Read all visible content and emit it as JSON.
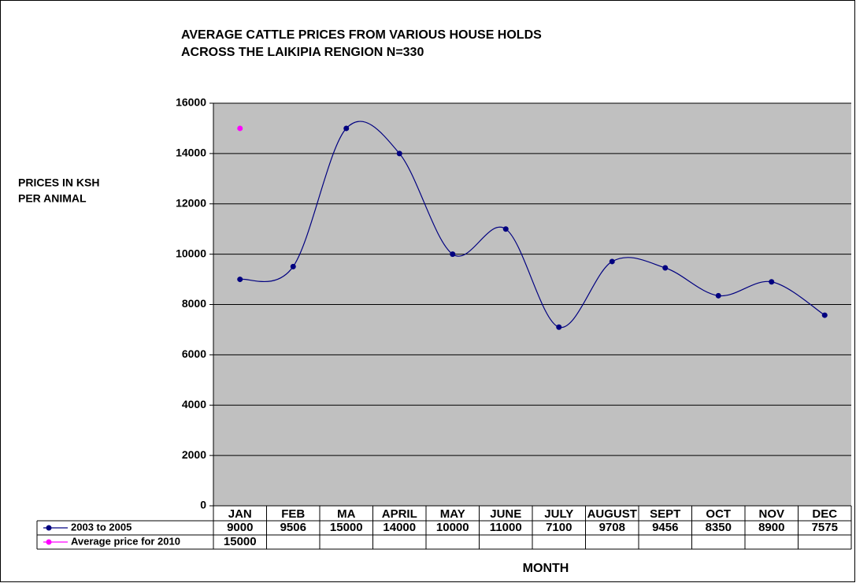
{
  "chart_data": {
    "type": "line",
    "title": [
      "AVERAGE CATTLE PRICES FROM VARIOUS HOUSE HOLDS",
      "ACROSS THE LAIKIPIA RENGION  N=330"
    ],
    "y_label": [
      "PRICES IN KSH",
      "PER ANIMAL"
    ],
    "x_label": "MONTH",
    "categories": [
      "JAN",
      "FEB",
      "MA",
      "APRIL",
      "MAY",
      "JUNE",
      "JULY",
      "AUGUST",
      "SEPT",
      "OCT",
      "NOV",
      "DEC"
    ],
    "series": [
      {
        "name": "2003 to 2005",
        "color": "#000080",
        "values": [
          9000,
          9506,
          15000,
          14000,
          10000,
          11000,
          7100,
          9708,
          9456,
          8350,
          8900,
          7575
        ]
      },
      {
        "name": "Average price for 2010",
        "color": "#ff00ff",
        "values": [
          15000,
          null,
          null,
          null,
          null,
          null,
          null,
          null,
          null,
          null,
          null,
          null
        ]
      }
    ],
    "ylim": [
      0,
      16000
    ],
    "yticks": [
      0,
      2000,
      4000,
      6000,
      8000,
      10000,
      12000,
      14000,
      16000
    ],
    "grid": true,
    "smooth": true
  }
}
